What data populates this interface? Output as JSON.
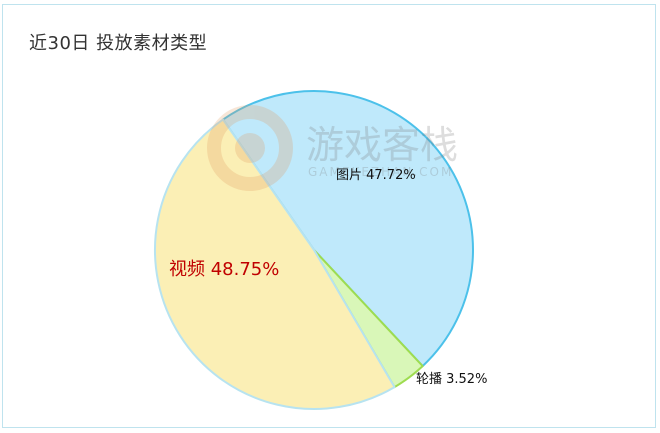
{
  "title": "近30日 投放素材类型",
  "chart_data": {
    "type": "pie",
    "title": "近30日 投放素材类型",
    "slices": [
      {
        "label": "图片",
        "value": 47.72,
        "display": "图片 47.72%",
        "fill": "#bfe9fb",
        "stroke": "#4cc1ea"
      },
      {
        "label": "轮播",
        "value": 3.52,
        "display": "轮播 3.52%",
        "fill": "#d9f7b8",
        "stroke": "#9edc50"
      },
      {
        "label": "视频",
        "value": 48.75,
        "display": "视频 48.75%",
        "fill": "#fbefb5",
        "stroke": "#b7e3f0"
      }
    ]
  },
  "watermark": {
    "brand": "游戏客栈",
    "domain": "GAMEKEZHAN.COM"
  }
}
